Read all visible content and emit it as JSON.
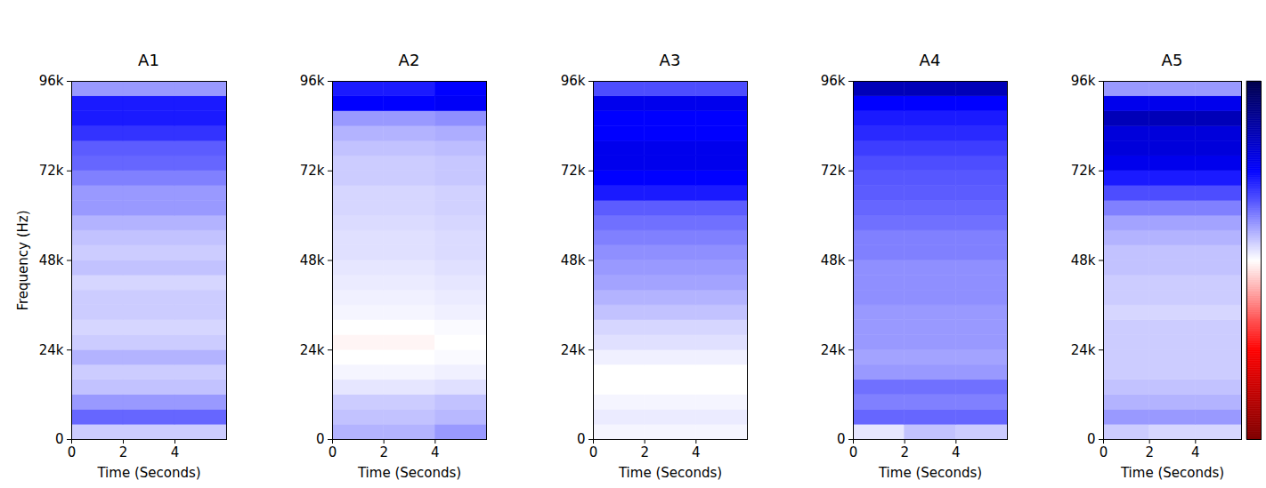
{
  "chart_data": [
    {
      "type": "heatmap",
      "title": "A1",
      "x_label": "Time (Seconds)",
      "y_label": "Frequency (Hz)",
      "xlim": [
        0,
        6
      ],
      "xticks": [
        0,
        2,
        4
      ],
      "ylim": [
        0,
        96000
      ],
      "yticks": [
        0,
        {
          "value": 24000,
          "label": "24k"
        },
        {
          "value": 48000,
          "label": "48k"
        },
        {
          "value": 72000,
          "label": "72k"
        },
        {
          "value": 96000,
          "label": "96k"
        }
      ],
      "time_bins": [
        0,
        2,
        4,
        6
      ],
      "frequency_bins": [
        0,
        4000,
        8000,
        12000,
        16000,
        20000,
        24000,
        28000,
        32000,
        36000,
        40000,
        44000,
        48000,
        52000,
        56000,
        60000,
        64000,
        68000,
        72000,
        76000,
        80000,
        84000,
        88000,
        92000,
        96000
      ],
      "cells": [
        [
          0.1,
          0.1,
          0.1
        ],
        [
          0.3,
          0.3,
          0.3
        ],
        [
          0.2,
          0.2,
          0.2
        ],
        [
          0.12,
          0.12,
          0.12
        ],
        [
          0.1,
          0.1,
          0.1
        ],
        [
          0.15,
          0.15,
          0.15
        ],
        [
          0.1,
          0.1,
          0.1
        ],
        [
          0.08,
          0.08,
          0.08
        ],
        [
          0.1,
          0.1,
          0.1
        ],
        [
          0.1,
          0.1,
          0.1
        ],
        [
          0.08,
          0.08,
          0.08
        ],
        [
          0.12,
          0.12,
          0.12
        ],
        [
          0.1,
          0.1,
          0.1
        ],
        [
          0.12,
          0.12,
          0.12
        ],
        [
          0.15,
          0.15,
          0.15
        ],
        [
          0.2,
          0.2,
          0.2
        ],
        [
          0.2,
          0.2,
          0.2
        ],
        [
          0.25,
          0.25,
          0.25
        ],
        [
          0.3,
          0.3,
          0.3
        ],
        [
          0.32,
          0.32,
          0.32
        ],
        [
          0.4,
          0.4,
          0.4
        ],
        [
          0.45,
          0.45,
          0.45
        ],
        [
          0.45,
          0.45,
          0.45
        ],
        [
          0.2,
          0.2,
          0.2
        ]
      ]
    },
    {
      "type": "heatmap",
      "title": "A2",
      "x_label": "Time (Seconds)",
      "xlim": [
        0,
        6
      ],
      "xticks": [
        0,
        2,
        4
      ],
      "ylim": [
        0,
        96000
      ],
      "yticks": [
        0,
        {
          "value": 24000,
          "label": "24k"
        },
        {
          "value": 48000,
          "label": "48k"
        },
        {
          "value": 72000,
          "label": "72k"
        },
        {
          "value": 96000,
          "label": "96k"
        }
      ],
      "time_bins": [
        0,
        2,
        4,
        6
      ],
      "frequency_bins": [
        0,
        4000,
        8000,
        12000,
        16000,
        20000,
        24000,
        28000,
        32000,
        36000,
        40000,
        44000,
        48000,
        52000,
        56000,
        60000,
        64000,
        68000,
        72000,
        76000,
        80000,
        84000,
        88000,
        92000,
        96000
      ],
      "cells": [
        [
          0.15,
          0.15,
          0.2
        ],
        [
          0.12,
          0.12,
          0.14
        ],
        [
          0.1,
          0.1,
          0.12
        ],
        [
          0.05,
          0.05,
          0.06
        ],
        [
          0.02,
          0.02,
          0.03
        ],
        [
          0,
          0,
          0.01
        ],
        [
          -0.02,
          -0.02,
          0
        ],
        [
          0,
          0,
          0.01
        ],
        [
          0.02,
          0.02,
          0.03
        ],
        [
          0.03,
          0.03,
          0.04
        ],
        [
          0.04,
          0.04,
          0.05
        ],
        [
          0.05,
          0.05,
          0.06
        ],
        [
          0.06,
          0.06,
          0.07
        ],
        [
          0.06,
          0.06,
          0.07
        ],
        [
          0.07,
          0.07,
          0.08
        ],
        [
          0.08,
          0.08,
          0.09
        ],
        [
          0.08,
          0.08,
          0.09
        ],
        [
          0.1,
          0.1,
          0.11
        ],
        [
          0.1,
          0.1,
          0.11
        ],
        [
          0.12,
          0.12,
          0.13
        ],
        [
          0.15,
          0.15,
          0.16
        ],
        [
          0.2,
          0.2,
          0.22
        ],
        [
          0.5,
          0.5,
          0.52
        ],
        [
          0.45,
          0.45,
          0.5
        ]
      ]
    },
    {
      "type": "heatmap",
      "title": "A3",
      "x_label": "Time (Seconds)",
      "xlim": [
        0,
        6
      ],
      "xticks": [
        0,
        2,
        4
      ],
      "ylim": [
        0,
        96000
      ],
      "yticks": [
        0,
        {
          "value": 24000,
          "label": "24k"
        },
        {
          "value": 48000,
          "label": "48k"
        },
        {
          "value": 72000,
          "label": "72k"
        },
        {
          "value": 96000,
          "label": "96k"
        }
      ],
      "time_bins": [
        0,
        2,
        4,
        6
      ],
      "frequency_bins": [
        0,
        4000,
        8000,
        12000,
        16000,
        20000,
        24000,
        28000,
        32000,
        36000,
        40000,
        44000,
        48000,
        52000,
        56000,
        60000,
        64000,
        68000,
        72000,
        76000,
        80000,
        84000,
        88000,
        92000,
        96000
      ],
      "cells": [
        [
          0.02,
          0.02,
          0.02
        ],
        [
          0.04,
          0.04,
          0.04
        ],
        [
          0.02,
          0.02,
          0.02
        ],
        [
          0,
          0,
          0
        ],
        [
          0,
          0,
          0
        ],
        [
          0.03,
          0.03,
          0.03
        ],
        [
          0.06,
          0.06,
          0.06
        ],
        [
          0.08,
          0.08,
          0.08
        ],
        [
          0.12,
          0.12,
          0.12
        ],
        [
          0.15,
          0.15,
          0.15
        ],
        [
          0.18,
          0.18,
          0.18
        ],
        [
          0.2,
          0.2,
          0.2
        ],
        [
          0.22,
          0.22,
          0.22
        ],
        [
          0.25,
          0.25,
          0.25
        ],
        [
          0.28,
          0.28,
          0.28
        ],
        [
          0.32,
          0.32,
          0.32
        ],
        [
          0.45,
          0.45,
          0.45
        ],
        [
          0.5,
          0.5,
          0.5
        ],
        [
          0.55,
          0.55,
          0.55
        ],
        [
          0.55,
          0.55,
          0.55
        ],
        [
          0.5,
          0.5,
          0.5
        ],
        [
          0.5,
          0.5,
          0.5
        ],
        [
          0.55,
          0.55,
          0.55
        ],
        [
          0.35,
          0.35,
          0.35
        ]
      ]
    },
    {
      "type": "heatmap",
      "title": "A4",
      "x_label": "Time (Seconds)",
      "xlim": [
        0,
        6
      ],
      "xticks": [
        0,
        2,
        4
      ],
      "ylim": [
        0,
        96000
      ],
      "yticks": [
        0,
        {
          "value": 24000,
          "label": "24k"
        },
        {
          "value": 48000,
          "label": "48k"
        },
        {
          "value": 72000,
          "label": "72k"
        },
        {
          "value": 96000,
          "label": "96k"
        }
      ],
      "time_bins": [
        0,
        2,
        4,
        6
      ],
      "frequency_bins": [
        0,
        4000,
        8000,
        12000,
        16000,
        20000,
        24000,
        28000,
        32000,
        36000,
        40000,
        44000,
        48000,
        52000,
        56000,
        60000,
        64000,
        68000,
        72000,
        76000,
        80000,
        84000,
        88000,
        92000,
        96000
      ],
      "cells": [
        [
          0.05,
          0.12,
          0.1
        ],
        [
          0.3,
          0.3,
          0.3
        ],
        [
          0.25,
          0.25,
          0.25
        ],
        [
          0.28,
          0.28,
          0.28
        ],
        [
          0.2,
          0.2,
          0.2
        ],
        [
          0.18,
          0.18,
          0.18
        ],
        [
          0.2,
          0.2,
          0.2
        ],
        [
          0.2,
          0.2,
          0.2
        ],
        [
          0.2,
          0.2,
          0.2
        ],
        [
          0.22,
          0.22,
          0.22
        ],
        [
          0.22,
          0.22,
          0.22
        ],
        [
          0.22,
          0.22,
          0.22
        ],
        [
          0.25,
          0.25,
          0.25
        ],
        [
          0.25,
          0.25,
          0.25
        ],
        [
          0.28,
          0.28,
          0.28
        ],
        [
          0.3,
          0.3,
          0.3
        ],
        [
          0.32,
          0.32,
          0.32
        ],
        [
          0.33,
          0.33,
          0.33
        ],
        [
          0.35,
          0.35,
          0.35
        ],
        [
          0.38,
          0.38,
          0.38
        ],
        [
          0.42,
          0.42,
          0.42
        ],
        [
          0.45,
          0.45,
          0.45
        ],
        [
          0.5,
          0.5,
          0.5
        ],
        [
          0.7,
          0.7,
          0.7
        ]
      ]
    },
    {
      "type": "heatmap",
      "title": "A5",
      "x_label": "Time (Seconds)",
      "xlim": [
        0,
        6
      ],
      "xticks": [
        0,
        2,
        4
      ],
      "ylim": [
        0,
        96000
      ],
      "yticks": [
        0,
        {
          "value": 24000,
          "label": "24k"
        },
        {
          "value": 48000,
          "label": "48k"
        },
        {
          "value": 72000,
          "label": "72k"
        },
        {
          "value": 96000,
          "label": "96k"
        }
      ],
      "time_bins": [
        0,
        2,
        4,
        6
      ],
      "frequency_bins": [
        0,
        4000,
        8000,
        12000,
        16000,
        20000,
        24000,
        28000,
        32000,
        36000,
        40000,
        44000,
        48000,
        52000,
        56000,
        60000,
        64000,
        68000,
        72000,
        76000,
        80000,
        84000,
        88000,
        92000,
        96000
      ],
      "cells": [
        [
          0.1,
          0.08,
          0.08
        ],
        [
          0.2,
          0.2,
          0.2
        ],
        [
          0.15,
          0.15,
          0.15
        ],
        [
          0.12,
          0.12,
          0.12
        ],
        [
          0.1,
          0.1,
          0.1
        ],
        [
          0.1,
          0.1,
          0.1
        ],
        [
          0.1,
          0.1,
          0.1
        ],
        [
          0.1,
          0.1,
          0.1
        ],
        [
          0.08,
          0.08,
          0.08
        ],
        [
          0.1,
          0.1,
          0.1
        ],
        [
          0.1,
          0.1,
          0.1
        ],
        [
          0.12,
          0.12,
          0.12
        ],
        [
          0.12,
          0.12,
          0.12
        ],
        [
          0.15,
          0.15,
          0.15
        ],
        [
          0.18,
          0.18,
          0.18
        ],
        [
          0.25,
          0.25,
          0.25
        ],
        [
          0.35,
          0.35,
          0.35
        ],
        [
          0.45,
          0.45,
          0.45
        ],
        [
          0.55,
          0.55,
          0.55
        ],
        [
          0.6,
          0.6,
          0.6
        ],
        [
          0.6,
          0.6,
          0.6
        ],
        [
          0.7,
          0.7,
          0.7
        ],
        [
          0.55,
          0.55,
          0.55
        ],
        [
          0.2,
          0.2,
          0.2
        ]
      ],
      "colorbar_range": [
        -1,
        1
      ],
      "colorbar_ticks": []
    }
  ]
}
